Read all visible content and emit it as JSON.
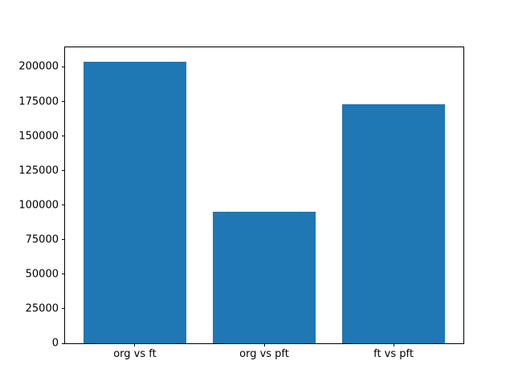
{
  "figure": {
    "background_color": "#ffffff"
  },
  "chart_data": {
    "type": "bar",
    "title": "",
    "xlabel": "",
    "ylabel": "",
    "categories": [
      "org vs ft",
      "org vs pft",
      "ft vs pft"
    ],
    "values": [
      204000,
      95000,
      173000
    ],
    "x": [
      0,
      1,
      2
    ],
    "bar_width": 0.8,
    "bar_color": "#1f77b4",
    "axis_color": "#000000",
    "tick_label_color": "#000000",
    "grid": false,
    "legend": null,
    "xlim": [
      -0.54,
      2.54
    ],
    "ylim": [
      0,
      214200
    ],
    "yticks": [
      0,
      25000,
      50000,
      75000,
      100000,
      125000,
      150000,
      175000,
      200000
    ],
    "ytick_labels": [
      "0",
      "25000",
      "50000",
      "75000",
      "100000",
      "125000",
      "150000",
      "175000",
      "200000"
    ]
  }
}
